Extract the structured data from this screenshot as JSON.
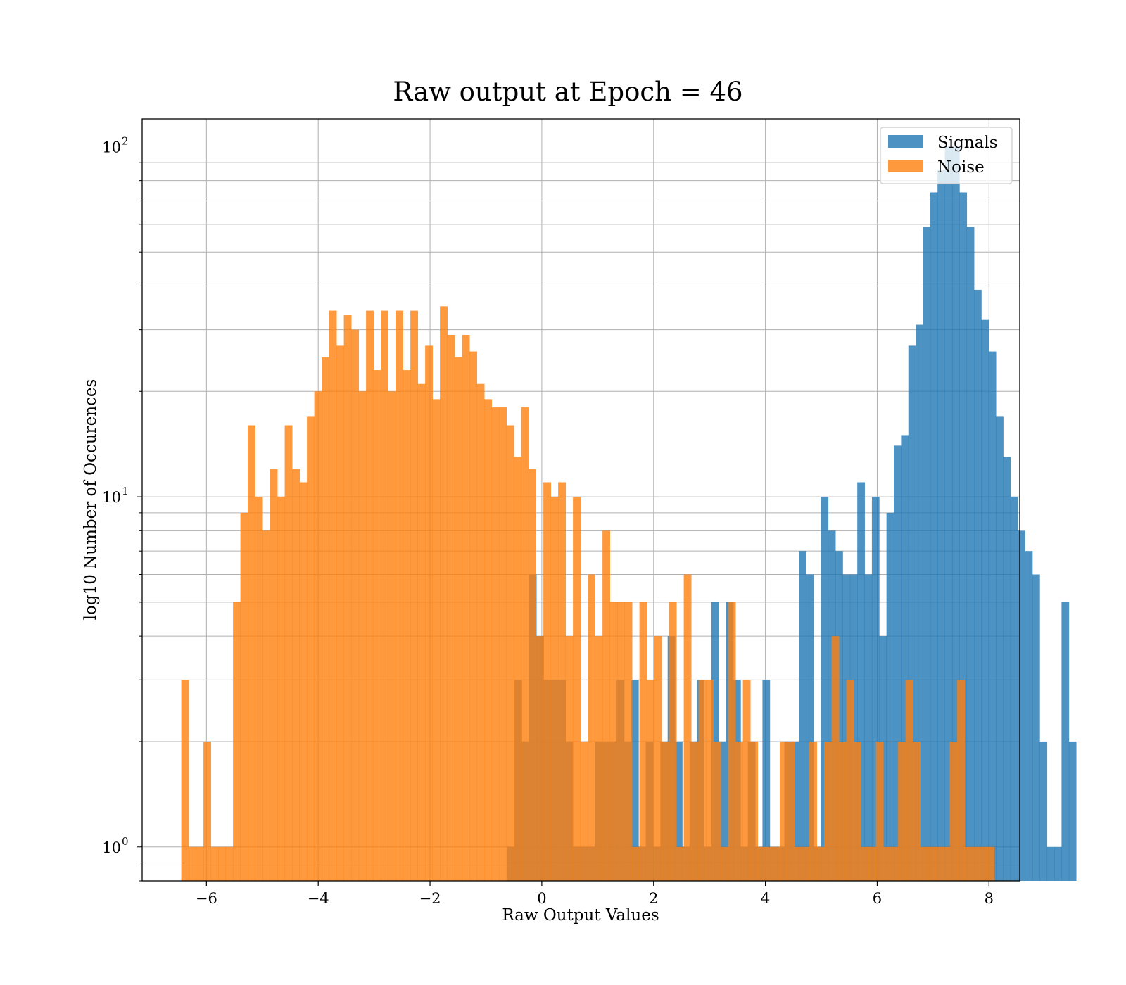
{
  "chart_data": {
    "type": "bar",
    "subtype": "histogram",
    "title": "Raw output at Epoch = 46",
    "xlabel": "Raw Output Values",
    "ylabel": "log10 Number of Occurences",
    "xlim": [
      -7.15,
      8.55
    ],
    "ylim": [
      0.8,
      120
    ],
    "yscale": "log",
    "grid": true,
    "legend_position": "top-right",
    "x_ticks": [
      "−6",
      "−4",
      "−2",
      "0",
      "2",
      "4",
      "6",
      "8"
    ],
    "x_tick_values": [
      -6,
      -4,
      -2,
      0,
      2,
      4,
      6,
      8
    ],
    "y_ticks": [
      {
        "value": 1,
        "base": "10",
        "exp": "0"
      },
      {
        "value": 10,
        "base": "10",
        "exp": "1"
      },
      {
        "value": 100,
        "base": "10",
        "exp": "2"
      }
    ],
    "series": [
      {
        "name": "Signals",
        "color": "#1f77b4",
        "opacity": 0.8,
        "bin_start": -0.62,
        "bin_width": 0.1305,
        "counts": [
          1,
          3,
          2,
          6,
          4,
          3,
          3,
          3,
          2,
          1,
          1,
          1,
          2,
          2,
          2,
          3,
          2,
          3,
          1,
          2,
          1,
          2,
          4,
          2,
          1,
          2,
          3,
          1,
          5,
          2,
          5,
          3,
          1,
          2,
          1,
          3,
          1,
          1,
          2,
          2,
          7,
          6,
          1,
          10,
          8,
          7,
          6,
          6,
          11,
          6,
          10,
          4,
          9,
          14,
          15,
          27,
          31,
          59,
          74,
          86,
          100,
          100,
          74,
          59,
          39,
          32,
          26,
          17,
          13,
          10,
          8,
          7,
          6,
          2,
          1,
          1,
          5,
          2
        ]
      },
      {
        "name": "Noise",
        "color": "#ff7f0e",
        "opacity": 0.8,
        "bin_start": -6.45,
        "bin_width": 0.1322,
        "counts": [
          3,
          1,
          1,
          2,
          1,
          1,
          1,
          5,
          9,
          16,
          10,
          8,
          12,
          10,
          16,
          12,
          11,
          17,
          20,
          25,
          34,
          27,
          33,
          30,
          20,
          34,
          23,
          34,
          20,
          34,
          23,
          34,
          21,
          27,
          19,
          35,
          29,
          25,
          29,
          26,
          21,
          19,
          18,
          18,
          16,
          13,
          18,
          12,
          4,
          11,
          10,
          11,
          4,
          10,
          2,
          6,
          4,
          8,
          5,
          5,
          5,
          1,
          5,
          3,
          4,
          2,
          5,
          1,
          6,
          2,
          3,
          3,
          2,
          1,
          5,
          2,
          3,
          2,
          1,
          1,
          1,
          2,
          2,
          1,
          1,
          2,
          1,
          2,
          4,
          2,
          3,
          2,
          1,
          1,
          2,
          1,
          1,
          2,
          3,
          2,
          1,
          1,
          1,
          1,
          2,
          3,
          1,
          1,
          1,
          1
        ]
      }
    ]
  }
}
